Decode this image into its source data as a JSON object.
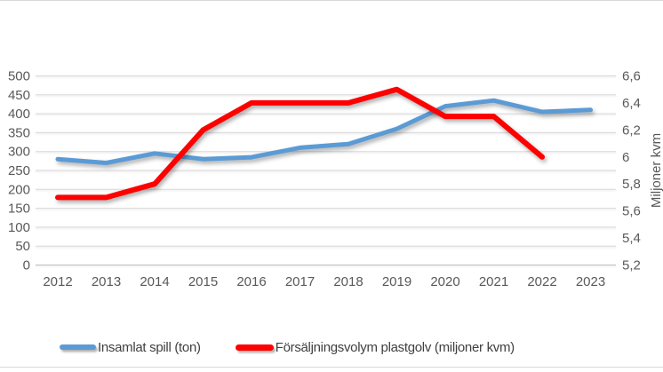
{
  "chart_data": {
    "type": "line",
    "title": "",
    "categories": [
      "2012",
      "2013",
      "2014",
      "2015",
      "2016",
      "2017",
      "2018",
      "2019",
      "2020",
      "2021",
      "2022",
      "2023"
    ],
    "series": [
      {
        "name": "Insamlat spill (ton)",
        "axis": "left",
        "color": "#5B9BD5",
        "values": [
          280,
          270,
          295,
          280,
          285,
          310,
          320,
          360,
          420,
          435,
          405,
          410
        ]
      },
      {
        "name": "Försäljningsvolym plastgolv (miljoner kvm)",
        "axis": "right",
        "color": "#FF0000",
        "values": [
          5.7,
          5.7,
          5.8,
          6.2,
          6.4,
          6.4,
          6.4,
          6.5,
          6.3,
          6.3,
          6.0,
          null
        ]
      }
    ],
    "left_axis": {
      "min": 0,
      "max": 500,
      "step": 50,
      "tick_labels": [
        "500",
        "450",
        "400",
        "350",
        "300",
        "250",
        "200",
        "150",
        "100",
        "50",
        "0"
      ]
    },
    "right_axis": {
      "min": 5.2,
      "max": 6.6,
      "step": 0.2,
      "tick_labels": [
        "6,6",
        "6,4",
        "6,2",
        "6",
        "5,8",
        "5,6",
        "5,4",
        "5,2"
      ],
      "title": "Miljoner kvm"
    },
    "grid": true,
    "legend_position": "bottom",
    "gridline_color": "#D9D9D9",
    "axis_text_color": "#595959"
  }
}
